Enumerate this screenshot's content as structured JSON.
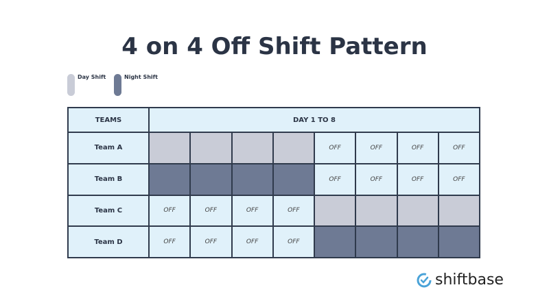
{
  "title": "4 on 4 Off Shift Pattern",
  "legend": [
    {
      "label": "Day Shift",
      "color": "#c9ccd7"
    },
    {
      "label": "Night Shift",
      "color": "#6e7a94"
    }
  ],
  "table": {
    "headers": [
      "TEAMS",
      "DAY 1 TO 8"
    ],
    "off_label": "OFF",
    "rows": [
      {
        "team": "Team A",
        "cells": [
          "day",
          "day",
          "day",
          "day",
          "off",
          "off",
          "off",
          "off"
        ]
      },
      {
        "team": "Team B",
        "cells": [
          "night",
          "night",
          "night",
          "night",
          "off",
          "off",
          "off",
          "off"
        ]
      },
      {
        "team": "Team C",
        "cells": [
          "off",
          "off",
          "off",
          "off",
          "day",
          "day",
          "day",
          "day"
        ]
      },
      {
        "team": "Team D",
        "cells": [
          "off",
          "off",
          "off",
          "off",
          "night",
          "night",
          "night",
          "night"
        ]
      }
    ]
  },
  "brand": {
    "name": "shiftbase",
    "icon": "clock-check-icon",
    "color": "#4aa3d8"
  }
}
